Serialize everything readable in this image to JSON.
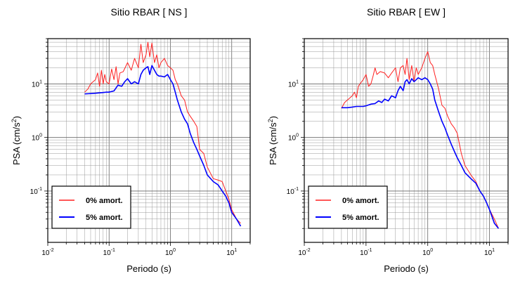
{
  "chart_data": [
    {
      "type": "line",
      "title": "Sitio RBAR [ NS ]",
      "xlabel": "Periodo (s)",
      "ylabel_base": "PSA (cm/s",
      "ylabel_exp": "2",
      "ylabel_close": ")",
      "xscale": "log",
      "yscale": "log",
      "xlim": [
        0.01,
        20
      ],
      "ylim": [
        0.011,
        70
      ],
      "grid": true,
      "legend_position": "bottom-left",
      "x_ticks": [
        {
          "base": "10",
          "exp": "-2",
          "v": 0.01
        },
        {
          "base": "10",
          "exp": "-1",
          "v": 0.1
        },
        {
          "base": "10",
          "exp": "0",
          "v": 1
        },
        {
          "base": "10",
          "exp": "1",
          "v": 10
        }
      ],
      "y_ticks": [
        {
          "base": "10",
          "exp": "-1",
          "v": 0.1
        },
        {
          "base": "10",
          "exp": "0",
          "v": 1
        },
        {
          "base": "10",
          "exp": "1",
          "v": 10
        }
      ],
      "series": [
        {
          "name": "0% amort.",
          "color": "#ff2020",
          "x": [
            0.04,
            0.045,
            0.05,
            0.055,
            0.06,
            0.065,
            0.07,
            0.075,
            0.08,
            0.085,
            0.09,
            0.1,
            0.11,
            0.12,
            0.13,
            0.14,
            0.15,
            0.17,
            0.2,
            0.23,
            0.26,
            0.3,
            0.33,
            0.36,
            0.4,
            0.43,
            0.46,
            0.5,
            0.55,
            0.6,
            0.65,
            0.7,
            0.8,
            0.9,
            1.0,
            1.1,
            1.2,
            1.3,
            1.5,
            1.7,
            1.9,
            2.1,
            2.4,
            2.7,
            3.0,
            3.5,
            4.0,
            5.0,
            6.0,
            7.0,
            8.0,
            9.0,
            10.0,
            12.0,
            14.0
          ],
          "values": [
            7,
            8,
            10,
            11,
            12,
            16,
            9,
            18,
            10,
            15,
            11,
            10,
            19,
            12,
            21,
            10,
            16,
            17,
            25,
            18,
            30,
            20,
            55,
            25,
            35,
            60,
            32,
            58,
            25,
            35,
            20,
            25,
            30,
            22,
            20,
            18,
            12,
            10,
            6,
            5,
            3,
            2.5,
            2,
            1.6,
            0.6,
            0.5,
            0.28,
            0.17,
            0.16,
            0.15,
            0.1,
            0.07,
            0.045,
            0.03,
            0.025
          ]
        },
        {
          "name": "5% amort.",
          "color": "#0000ff",
          "x": [
            0.04,
            0.05,
            0.06,
            0.07,
            0.08,
            0.09,
            0.1,
            0.12,
            0.14,
            0.16,
            0.18,
            0.2,
            0.23,
            0.26,
            0.3,
            0.33,
            0.36,
            0.4,
            0.43,
            0.46,
            0.5,
            0.55,
            0.6,
            0.65,
            0.7,
            0.8,
            0.9,
            1.0,
            1.1,
            1.2,
            1.3,
            1.5,
            1.7,
            1.9,
            2.1,
            2.4,
            2.7,
            3.0,
            3.5,
            4.0,
            5.0,
            6.0,
            7.0,
            8.0,
            9.0,
            10.0,
            12.0,
            14.0
          ],
          "values": [
            6.5,
            6.6,
            6.7,
            6.8,
            6.9,
            7.0,
            7.0,
            7.4,
            9.5,
            9.0,
            11,
            12.5,
            10,
            11,
            10,
            15,
            18,
            20,
            21,
            15,
            22,
            18,
            15,
            14,
            14,
            13.5,
            15,
            12,
            10,
            7,
            5,
            3,
            2.2,
            1.8,
            1.2,
            0.8,
            0.6,
            0.45,
            0.3,
            0.2,
            0.15,
            0.13,
            0.1,
            0.08,
            0.06,
            0.04,
            0.03,
            0.022
          ]
        }
      ]
    },
    {
      "type": "line",
      "title": "Sitio RBAR [ EW ]",
      "xlabel": "Periodo (s)",
      "ylabel_base": "PSA (cm/s",
      "ylabel_exp": "2",
      "ylabel_close": ")",
      "xscale": "log",
      "yscale": "log",
      "xlim": [
        0.01,
        20
      ],
      "ylim": [
        0.011,
        70
      ],
      "grid": true,
      "legend_position": "bottom-left",
      "x_ticks": [
        {
          "base": "10",
          "exp": "-2",
          "v": 0.01
        },
        {
          "base": "10",
          "exp": "-1",
          "v": 0.1
        },
        {
          "base": "10",
          "exp": "0",
          "v": 1
        },
        {
          "base": "10",
          "exp": "1",
          "v": 10
        }
      ],
      "y_ticks": [
        {
          "base": "10",
          "exp": "-1",
          "v": 0.1
        },
        {
          "base": "10",
          "exp": "0",
          "v": 1
        },
        {
          "base": "10",
          "exp": "1",
          "v": 10
        }
      ],
      "series": [
        {
          "name": "0% amort.",
          "color": "#ff2020",
          "x": [
            0.04,
            0.045,
            0.05,
            0.055,
            0.06,
            0.065,
            0.07,
            0.075,
            0.08,
            0.09,
            0.1,
            0.11,
            0.12,
            0.13,
            0.14,
            0.15,
            0.17,
            0.2,
            0.23,
            0.26,
            0.3,
            0.33,
            0.36,
            0.4,
            0.43,
            0.46,
            0.5,
            0.55,
            0.6,
            0.65,
            0.7,
            0.8,
            0.9,
            1.0,
            1.1,
            1.2,
            1.3,
            1.5,
            1.7,
            1.9,
            2.1,
            2.4,
            2.7,
            3.0,
            3.5,
            4.0,
            5.0,
            6.0,
            7.0,
            8.0,
            9.0,
            10.0,
            12.0,
            14.0
          ],
          "values": [
            3.5,
            4.5,
            5,
            5.5,
            6,
            7,
            5.5,
            9,
            10,
            12,
            15,
            9,
            10,
            14,
            20,
            15,
            17,
            16,
            13,
            16,
            20,
            11,
            20,
            22,
            15,
            30,
            12,
            22,
            11,
            20,
            15,
            20,
            30,
            40,
            25,
            22,
            15,
            8,
            4,
            3.5,
            2.5,
            1.8,
            1.5,
            1.2,
            0.5,
            0.3,
            0.2,
            0.15,
            0.1,
            0.08,
            0.06,
            0.045,
            0.03,
            0.02
          ]
        },
        {
          "name": "5% amort.",
          "color": "#0000ff",
          "x": [
            0.04,
            0.05,
            0.06,
            0.07,
            0.08,
            0.09,
            0.1,
            0.12,
            0.14,
            0.16,
            0.18,
            0.2,
            0.23,
            0.26,
            0.3,
            0.33,
            0.36,
            0.4,
            0.43,
            0.46,
            0.5,
            0.55,
            0.6,
            0.65,
            0.7,
            0.8,
            0.9,
            1.0,
            1.1,
            1.2,
            1.3,
            1.5,
            1.7,
            1.9,
            2.1,
            2.4,
            2.7,
            3.0,
            3.5,
            4.0,
            5.0,
            6.0,
            7.0,
            8.0,
            9.0,
            10.0,
            12.0,
            14.0
          ],
          "values": [
            3.6,
            3.6,
            3.7,
            3.8,
            3.8,
            3.8,
            3.9,
            4.2,
            4.3,
            4.8,
            4.5,
            5.2,
            4.8,
            6,
            5.5,
            7.5,
            9,
            7.5,
            11,
            12,
            10,
            12.5,
            11,
            12,
            13,
            12,
            13,
            12,
            10,
            8,
            5,
            3,
            2,
            1.5,
            1.1,
            0.75,
            0.55,
            0.42,
            0.3,
            0.22,
            0.17,
            0.14,
            0.1,
            0.08,
            0.06,
            0.045,
            0.025,
            0.02
          ]
        }
      ]
    }
  ]
}
